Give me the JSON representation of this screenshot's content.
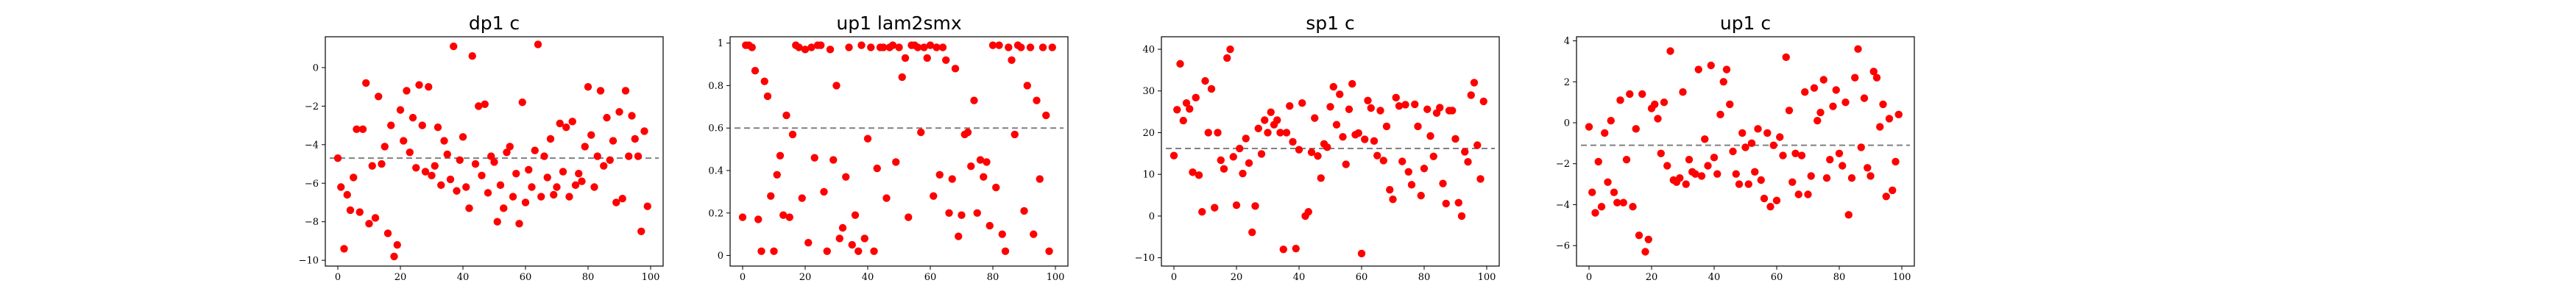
{
  "figure": {
    "background": "#ffffff",
    "marker_color": "#ff0000",
    "mean_line_color": "#808080"
  },
  "chart_data": [
    {
      "type": "scatter",
      "title": "dp1 c",
      "xlabel": "",
      "ylabel": "",
      "xlim": [
        -4,
        104
      ],
      "ylim": [
        -10.3,
        1.6
      ],
      "xticks": [
        0,
        20,
        40,
        60,
        80,
        100
      ],
      "yticks": [
        -10,
        -8,
        -6,
        -4,
        -2,
        0
      ],
      "grid": false,
      "mean_line": -4.7,
      "x": [
        0,
        1,
        2,
        3,
        4,
        5,
        6,
        7,
        8,
        9,
        10,
        11,
        12,
        13,
        14,
        15,
        16,
        17,
        18,
        19,
        20,
        21,
        22,
        23,
        24,
        25,
        26,
        27,
        28,
        29,
        30,
        31,
        32,
        33,
        34,
        35,
        36,
        37,
        38,
        39,
        40,
        41,
        42,
        43,
        44,
        45,
        46,
        47,
        48,
        49,
        50,
        51,
        52,
        53,
        54,
        55,
        56,
        57,
        58,
        59,
        60,
        61,
        62,
        63,
        64,
        65,
        66,
        67,
        68,
        69,
        70,
        71,
        72,
        73,
        74,
        75,
        76,
        77,
        78,
        79,
        80,
        81,
        82,
        83,
        84,
        85,
        86,
        87,
        88,
        89,
        90,
        91,
        92,
        93,
        94,
        95,
        96,
        97,
        98,
        99
      ],
      "y": [
        -4.7,
        -6.2,
        -9.4,
        -6.6,
        -7.4,
        -5.7,
        -3.2,
        -7.5,
        -3.2,
        -0.8,
        -8.1,
        -5.1,
        -7.8,
        -1.5,
        -5.0,
        -4.1,
        -8.6,
        -3.0,
        -9.8,
        -9.2,
        -2.2,
        -3.8,
        -1.2,
        -4.4,
        -2.6,
        -5.2,
        -0.9,
        -3.0,
        -5.4,
        -1.0,
        -5.6,
        -5.1,
        -3.1,
        -6.1,
        -3.8,
        -4.5,
        -5.8,
        1.1,
        -6.4,
        -4.8,
        -3.6,
        -6.2,
        -7.3,
        0.6,
        -5.0,
        -2.0,
        -5.6,
        -1.9,
        -6.5,
        -4.6,
        -4.9,
        -8.0,
        -6.1,
        -7.3,
        -4.4,
        -4.1,
        -6.7,
        -5.5,
        -8.1,
        -1.8,
        -7.0,
        -5.3,
        -6.2,
        -4.3,
        1.2,
        -6.7,
        -4.6,
        -5.7,
        -3.7,
        -6.6,
        -6.2,
        -2.9,
        -5.4,
        -3.1,
        -6.7,
        -2.8,
        -6.1,
        -5.5,
        -5.9,
        -4.1,
        -1.0,
        -3.5,
        -6.2,
        -4.6,
        -1.2,
        -5.1,
        -2.6,
        -4.8,
        -3.8,
        -7.0,
        -2.3,
        -6.8,
        -1.2,
        -4.6,
        -2.5,
        -3.7,
        -4.6,
        -8.5,
        -3.3,
        -7.2
      ]
    },
    {
      "type": "scatter",
      "title": "up1 lam2smx",
      "xlabel": "",
      "ylabel": "",
      "xlim": [
        -4,
        104
      ],
      "ylim": [
        -0.05,
        1.03
      ],
      "xticks": [
        0,
        20,
        40,
        60,
        80,
        100
      ],
      "yticks": [
        0.0,
        0.2,
        0.4,
        0.6,
        0.8,
        1.0
      ],
      "grid": false,
      "mean_line": 0.6,
      "x": [
        0,
        1,
        2,
        3,
        4,
        5,
        6,
        7,
        8,
        9,
        10,
        11,
        12,
        13,
        14,
        15,
        16,
        17,
        18,
        19,
        20,
        21,
        22,
        23,
        24,
        25,
        26,
        27,
        28,
        29,
        30,
        31,
        32,
        33,
        34,
        35,
        36,
        37,
        38,
        39,
        40,
        41,
        42,
        43,
        44,
        45,
        46,
        47,
        48,
        49,
        50,
        51,
        52,
        53,
        54,
        55,
        56,
        57,
        58,
        59,
        60,
        61,
        62,
        63,
        64,
        65,
        66,
        67,
        68,
        69,
        70,
        71,
        72,
        73,
        74,
        75,
        76,
        77,
        78,
        79,
        80,
        81,
        82,
        83,
        84,
        85,
        86,
        87,
        88,
        89,
        90,
        91,
        92,
        93,
        94,
        95,
        96,
        97,
        98,
        99
      ],
      "y": [
        0.18,
        0.99,
        0.99,
        0.98,
        0.87,
        0.17,
        0.02,
        0.82,
        0.75,
        0.28,
        0.02,
        0.38,
        0.47,
        0.19,
        0.66,
        0.18,
        0.57,
        0.99,
        0.98,
        0.27,
        0.97,
        0.06,
        0.98,
        0.46,
        0.99,
        0.99,
        0.3,
        0.02,
        0.97,
        0.45,
        0.8,
        0.08,
        0.13,
        0.37,
        0.98,
        0.05,
        0.19,
        0.02,
        0.99,
        0.08,
        0.55,
        0.98,
        0.02,
        0.41,
        0.98,
        0.98,
        0.27,
        0.98,
        0.99,
        0.44,
        0.98,
        0.84,
        0.93,
        0.18,
        0.99,
        0.99,
        0.98,
        0.58,
        0.98,
        0.93,
        0.99,
        0.28,
        0.98,
        0.38,
        0.98,
        0.92,
        0.2,
        0.36,
        0.88,
        0.09,
        0.19,
        0.57,
        0.58,
        0.42,
        0.73,
        0.2,
        0.45,
        0.37,
        0.44,
        0.14,
        0.99,
        0.32,
        0.99,
        0.1,
        0.02,
        0.98,
        0.92,
        0.57,
        0.99,
        0.98,
        0.21,
        0.8,
        0.98,
        0.1,
        0.73,
        0.36,
        0.98,
        0.66,
        0.02,
        0.98
      ]
    },
    {
      "type": "scatter",
      "title": "sp1 c",
      "xlabel": "",
      "ylabel": "",
      "xlim": [
        -4,
        104
      ],
      "ylim": [
        -12,
        43
      ],
      "xticks": [
        0,
        20,
        40,
        60,
        80,
        100
      ],
      "yticks": [
        -10,
        0,
        10,
        20,
        30,
        40
      ],
      "grid": false,
      "mean_line": 16.2,
      "x": [
        0,
        1,
        2,
        3,
        4,
        5,
        6,
        7,
        8,
        9,
        10,
        11,
        12,
        13,
        14,
        15,
        16,
        17,
        18,
        19,
        20,
        21,
        22,
        23,
        24,
        25,
        26,
        27,
        28,
        29,
        30,
        31,
        32,
        33,
        34,
        35,
        36,
        37,
        38,
        39,
        40,
        41,
        42,
        43,
        44,
        45,
        46,
        47,
        48,
        49,
        50,
        51,
        52,
        53,
        54,
        55,
        56,
        57,
        58,
        59,
        60,
        61,
        62,
        63,
        64,
        65,
        66,
        67,
        68,
        69,
        70,
        71,
        72,
        73,
        74,
        75,
        76,
        77,
        78,
        79,
        80,
        81,
        82,
        83,
        84,
        85,
        86,
        87,
        88,
        89,
        90,
        91,
        92,
        93,
        94,
        95,
        96,
        97,
        98,
        99
      ],
      "y": [
        14.5,
        25.5,
        36.5,
        22.9,
        27.1,
        25.7,
        10.5,
        28.4,
        9.8,
        1.0,
        32.4,
        20.0,
        30.5,
        2.0,
        20.0,
        13.4,
        11.3,
        37.9,
        40.0,
        14.2,
        2.6,
        16.2,
        10.2,
        18.6,
        12.7,
        -3.9,
        2.4,
        21.0,
        14.9,
        23.0,
        20.0,
        24.9,
        21.9,
        23.0,
        20.0,
        -8.0,
        20.0,
        26.4,
        17.8,
        -7.8,
        15.9,
        27.1,
        0.0,
        1.0,
        15.3,
        23.5,
        14.4,
        9.1,
        17.3,
        16.5,
        26.2,
        31.0,
        21.9,
        29.2,
        19.0,
        12.4,
        25.6,
        31.7,
        19.5,
        19.9,
        -9.0,
        18.4,
        27.7,
        25.9,
        18.0,
        14.5,
        25.3,
        13.3,
        21.5,
        6.3,
        4.0,
        28.4,
        26.4,
        13.1,
        26.7,
        10.6,
        7.5,
        26.8,
        21.5,
        4.9,
        11.4,
        25.6,
        19.2,
        14.3,
        24.7,
        26.0,
        7.8,
        3.0,
        25.3,
        25.3,
        18.5,
        3.2,
        0.0,
        15.4,
        13.0,
        29.0,
        32.0,
        17.0,
        8.9,
        27.5
      ]
    },
    {
      "type": "scatter",
      "title": "up1 c",
      "xlabel": "",
      "ylabel": "",
      "xlim": [
        -4,
        104
      ],
      "ylim": [
        -7.0,
        4.2
      ],
      "xticks": [
        0,
        20,
        40,
        60,
        80,
        100
      ],
      "yticks": [
        -6,
        -4,
        -2,
        0,
        2,
        4
      ],
      "grid": false,
      "mean_line": -1.1,
      "x": [
        0,
        1,
        2,
        3,
        4,
        5,
        6,
        7,
        8,
        9,
        10,
        11,
        12,
        13,
        14,
        15,
        16,
        17,
        18,
        19,
        20,
        21,
        22,
        23,
        24,
        25,
        26,
        27,
        28,
        29,
        30,
        31,
        32,
        33,
        34,
        35,
        36,
        37,
        38,
        39,
        40,
        41,
        42,
        43,
        44,
        45,
        46,
        47,
        48,
        49,
        50,
        51,
        52,
        53,
        54,
        55,
        56,
        57,
        58,
        59,
        60,
        61,
        62,
        63,
        64,
        65,
        66,
        67,
        68,
        69,
        70,
        71,
        72,
        73,
        74,
        75,
        76,
        77,
        78,
        79,
        80,
        81,
        82,
        83,
        84,
        85,
        86,
        87,
        88,
        89,
        90,
        91,
        92,
        93,
        94,
        95,
        96,
        97,
        98,
        99
      ],
      "y": [
        -0.2,
        -3.4,
        -4.4,
        -1.9,
        -4.1,
        -0.5,
        -2.9,
        0.1,
        -3.4,
        -3.9,
        1.1,
        -3.9,
        -1.8,
        1.4,
        -4.1,
        -0.3,
        -5.5,
        1.4,
        -6.3,
        -5.7,
        0.7,
        0.9,
        0.2,
        -1.5,
        1.0,
        -2.1,
        3.5,
        -2.8,
        -2.9,
        -2.7,
        1.5,
        -3.0,
        -1.8,
        -2.4,
        -2.5,
        2.6,
        -2.6,
        -0.8,
        -2.1,
        2.8,
        -1.7,
        -2.5,
        0.4,
        2.0,
        2.6,
        0.9,
        -1.4,
        -2.5,
        -3.0,
        -0.5,
        -1.2,
        -3.0,
        -1.0,
        -2.4,
        -0.3,
        -2.8,
        -3.7,
        -0.5,
        -4.1,
        -1.1,
        -3.8,
        -0.7,
        -1.6,
        3.2,
        0.6,
        -2.9,
        -1.5,
        -3.5,
        -1.6,
        1.5,
        -3.5,
        -2.6,
        1.7,
        0.1,
        0.5,
        2.1,
        -2.7,
        -1.8,
        0.8,
        1.6,
        -1.5,
        -2.1,
        1.0,
        -4.5,
        -2.7,
        2.2,
        3.6,
        -1.2,
        1.2,
        -2.2,
        -2.6,
        2.5,
        2.2,
        -0.2,
        0.9,
        -3.6,
        0.2,
        -3.3,
        -1.9,
        0.4
      ]
    }
  ]
}
